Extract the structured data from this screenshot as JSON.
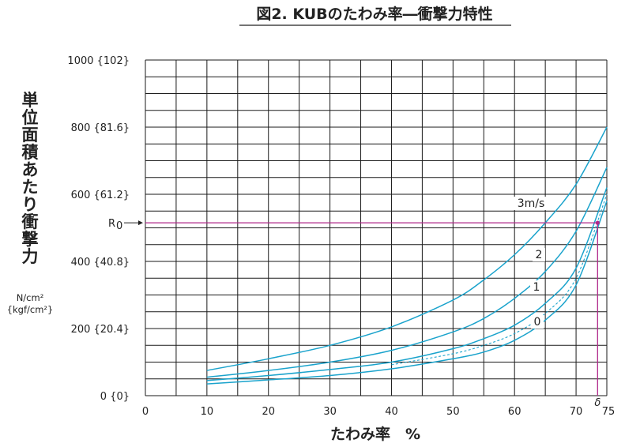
{
  "chart_data": {
    "type": "line",
    "title": "図2.  KUBのたわみ率―衝撃力特性",
    "xlabel": "たわみ率　%",
    "ylabel": "単位面積あたり衝撃力",
    "yunit_line1": "N/cm²",
    "yunit_line2": "{kgf/cm²}",
    "xlim": [
      0,
      75
    ],
    "ylim": [
      0,
      1000
    ],
    "x_ticks": [
      {
        "value": 0,
        "label": "0"
      },
      {
        "value": 10,
        "label": "10"
      },
      {
        "value": 20,
        "label": "20"
      },
      {
        "value": 30,
        "label": "30"
      },
      {
        "value": 40,
        "label": "40"
      },
      {
        "value": 50,
        "label": "50"
      },
      {
        "value": 60,
        "label": "60"
      },
      {
        "value": 70,
        "label": "70"
      },
      {
        "value": 75,
        "label": "75"
      }
    ],
    "y_ticks": [
      {
        "value": 0,
        "label": "0 {0}"
      },
      {
        "value": 200,
        "label": "200 {20.4}"
      },
      {
        "value": 400,
        "label": "400 {40.8}"
      },
      {
        "value": 600,
        "label": "600 {61.2}"
      },
      {
        "value": 800,
        "label": "800 {81.6}"
      },
      {
        "value": 1000,
        "label": "1000 {102}"
      }
    ],
    "grid": true,
    "series": [
      {
        "name": "3m/s",
        "style": "solid",
        "x": [
          10,
          20,
          30,
          40,
          50,
          55,
          60,
          65,
          70,
          75
        ],
        "y": [
          75,
          110,
          150,
          205,
          285,
          345,
          420,
          515,
          630,
          800
        ]
      },
      {
        "name": "2",
        "style": "solid",
        "x": [
          10,
          20,
          30,
          40,
          50,
          55,
          60,
          65,
          70,
          75
        ],
        "y": [
          55,
          75,
          100,
          135,
          190,
          230,
          290,
          370,
          490,
          680
        ]
      },
      {
        "name": "1",
        "style": "solid",
        "x": [
          10,
          20,
          30,
          40,
          50,
          55,
          60,
          65,
          70,
          75
        ],
        "y": [
          45,
          60,
          78,
          100,
          140,
          170,
          210,
          275,
          380,
          620
        ]
      },
      {
        "name": "",
        "style": "dashed",
        "x": [
          40,
          50,
          55,
          60,
          65,
          70,
          75
        ],
        "y": [
          92,
          125,
          150,
          185,
          245,
          350,
          600
        ]
      },
      {
        "name": "0",
        "style": "solid",
        "x": [
          10,
          20,
          30,
          40,
          50,
          55,
          60,
          65,
          70,
          75
        ],
        "y": [
          35,
          47,
          60,
          80,
          110,
          130,
          165,
          225,
          330,
          580
        ]
      }
    ],
    "annotations": {
      "r0_label": "R",
      "r0_subscript": "0",
      "r0_value": 515,
      "delta_label": "δ",
      "delta_value": 73.5
    },
    "colors": {
      "curve": "#1aa3cc",
      "marker": "#b0288a",
      "grid": "#1a1a1a"
    }
  }
}
